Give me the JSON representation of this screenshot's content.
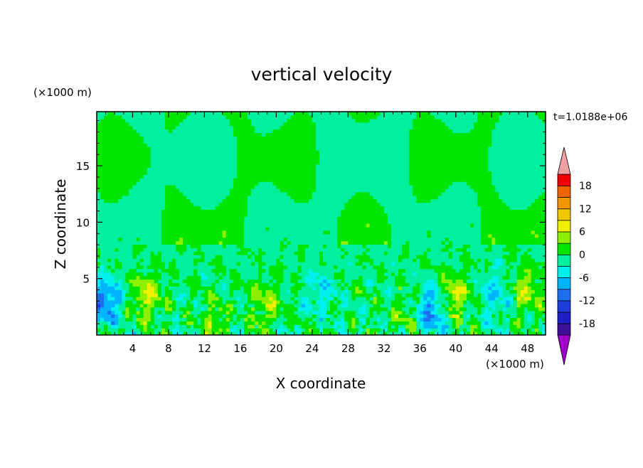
{
  "chart_data": {
    "type": "heatmap",
    "title": "vertical velocity",
    "xlabel": "X coordinate",
    "ylabel": "Z coordinate",
    "x_unit_label": "(×1000 m)",
    "y_unit_label": "(×1000 m)",
    "time_label": "t=1.0188e+06",
    "xlim": [
      0,
      50
    ],
    "ylim": [
      0,
      19.8
    ],
    "x_ticks": [
      4,
      8,
      12,
      16,
      20,
      24,
      28,
      32,
      36,
      40,
      44,
      48
    ],
    "y_ticks": [
      5,
      10,
      15
    ],
    "colorbar": {
      "levels": [
        -21,
        -18,
        -15,
        -12,
        -9,
        -6,
        -3,
        0,
        3,
        6,
        9,
        12,
        15,
        18,
        21
      ],
      "tick_labels": [
        "-18",
        "-12",
        "-6",
        "0",
        "6",
        "12",
        "18"
      ],
      "tick_values": [
        -18,
        -12,
        -6,
        0,
        6,
        12,
        18
      ],
      "colors": [
        "#3c0f96",
        "#1e1ec8",
        "#1e3cdc",
        "#1e6ef0",
        "#00b4ff",
        "#00f0f0",
        "#00f0a0",
        "#00e600",
        "#8cf000",
        "#f0f000",
        "#f0c800",
        "#f09600",
        "#f06400",
        "#f00000"
      ],
      "under_color": "#a000c8",
      "over_color": "#f0a0a0"
    },
    "field_features": [
      {
        "kind": "updraft",
        "x": 5.5,
        "z": 3.5,
        "peak": 7
      },
      {
        "kind": "updraft",
        "x": 13.3,
        "z": 1.2,
        "peak": 4
      },
      {
        "kind": "updraft",
        "x": 18.8,
        "z": 2.8,
        "peak": 5
      },
      {
        "kind": "updraft",
        "x": 34.5,
        "z": 1.6,
        "peak": 3
      },
      {
        "kind": "updraft",
        "x": 39.8,
        "z": 3.5,
        "peak": 7
      },
      {
        "kind": "updraft",
        "x": 47.8,
        "z": 4.0,
        "peak": 6
      },
      {
        "kind": "downdraft",
        "x": 1.0,
        "z": 3.0,
        "peak": -10
      },
      {
        "kind": "downdraft",
        "x": 37.3,
        "z": 2.2,
        "peak": -9
      },
      {
        "kind": "downdraft",
        "x": 44.5,
        "z": 3.5,
        "peak": -5
      },
      {
        "kind": "downdraft",
        "x": 25.0,
        "z": 3.8,
        "peak": -4
      }
    ]
  }
}
